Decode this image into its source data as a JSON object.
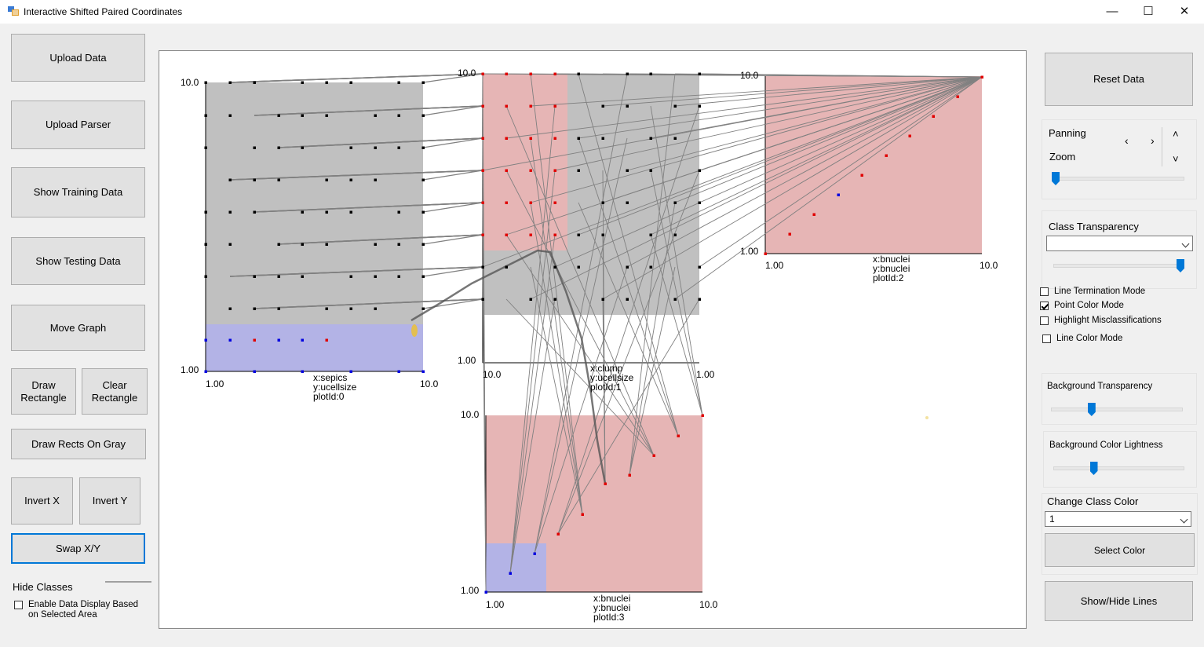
{
  "window": {
    "title": "Interactive Shifted Paired Coordinates",
    "minimize_glyph": "—",
    "maximize_glyph": "☐",
    "close_glyph": "✕"
  },
  "left_panel": {
    "upload_data": "Upload Data",
    "upload_parser": "Upload Parser",
    "show_training": "Show Training Data",
    "show_testing": "Show Testing Data",
    "move_graph": "Move Graph",
    "draw_rectangle": "Draw Rectangle",
    "clear_rectangle": "Clear Rectangle",
    "draw_rects_on_gray": "Draw Rects On Gray",
    "invert_x": "Invert X",
    "invert_y": "Invert Y",
    "swap_xy": "Swap X/Y",
    "hide_classes": "Hide Classes",
    "enable_display": "Enable Data Display Based on Selected Area"
  },
  "right_panel": {
    "reset_data": "Reset Data",
    "panning": "Panning",
    "zoom": "Zoom",
    "zoom_level": 0.0,
    "class_transparency": "Class Transparency",
    "class_transparency_selected": "",
    "class_transparency_level": 1.0,
    "line_termination": "Line Termination Mode",
    "point_color": "Point Color Mode",
    "highlight_misclass": "Highlight Misclassifications",
    "line_color": "Line Color Mode",
    "background_transparency": "Background Transparency",
    "background_transparency_level": 0.3,
    "background_lightness": "Background Color Lightness",
    "background_lightness_level": 0.3,
    "change_class_color": "Change Class Color",
    "class_selected": "1",
    "select_color": "Select Color",
    "show_hide_lines": "Show/Hide Lines",
    "checkboxes": {
      "line_termination": false,
      "point_color": true,
      "highlight_misclass": false,
      "line_color": false
    }
  },
  "colors": {
    "gray_region": "#c0c0c0",
    "pink_region": "#e6b5b5",
    "blue_region": "#b3b3e6",
    "line": "#808080",
    "point_red": "#e00000",
    "point_blue": "#0000e0",
    "point_black": "#000000",
    "accent": "#0078d7"
  },
  "plots": [
    {
      "id": "plot0",
      "xmin": "1.00",
      "xmax": "10.0",
      "ymin": "1.00",
      "ymax": "10.0",
      "x": "x:sepics",
      "y": "y:ucellsize",
      "plot_id": "plotId:0"
    },
    {
      "id": "plot1",
      "xmin": "10.0",
      "xmax": "1.00",
      "ymin": "1.00",
      "ymax": "10.0",
      "x": "x:clump",
      "y": "y:ucellsize",
      "plot_id": "plotId:1"
    },
    {
      "id": "plot2",
      "xmin": "1.00",
      "xmax": "10.0",
      "ymin": "1.00",
      "ymax": "10.0",
      "x": "x:bnuclei",
      "y": "y:bnuclei",
      "plot_id": "plotId:2"
    },
    {
      "id": "plot3",
      "xmin": "1.00",
      "xmax": "10.0",
      "ymin": "1.00",
      "ymax": "10.0",
      "x": "x:bnuclei",
      "y": "y:bnuclei",
      "plot_id": "plotId:3"
    }
  ]
}
